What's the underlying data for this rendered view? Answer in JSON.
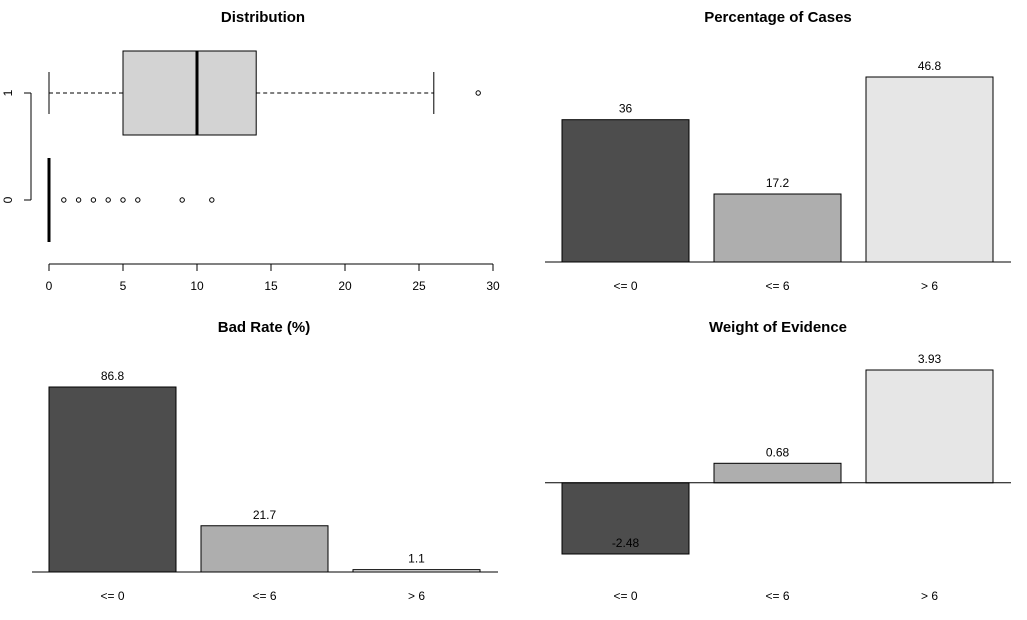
{
  "chart_data": [
    {
      "type": "boxplot",
      "title": "Distribution",
      "orientation": "horizontal",
      "xlim": [
        0,
        30
      ],
      "x_ticks": [
        "0",
        "5",
        "10",
        "15",
        "20",
        "25",
        "30"
      ],
      "groups": [
        {
          "label": "1",
          "min": 0,
          "q1": 5,
          "median": 10,
          "q3": 14,
          "max": 26,
          "outliers": [
            29
          ]
        },
        {
          "label": "0",
          "min": 0,
          "q1": 0,
          "median": 0,
          "q3": 0,
          "max": 0,
          "outliers": [
            1,
            2,
            3,
            4,
            5,
            6,
            9,
            11
          ]
        }
      ]
    },
    {
      "type": "bar",
      "title": "Percentage of Cases",
      "categories": [
        "<= 0",
        "<= 6",
        "> 6"
      ],
      "values": [
        36,
        17.2,
        46.8
      ],
      "value_labels": [
        "36",
        "17.2",
        "46.8"
      ],
      "colors": [
        "#4d4d4d",
        "#aeaeae",
        "#e6e6e6"
      ]
    },
    {
      "type": "bar",
      "title": "Bad Rate (%)",
      "categories": [
        "<= 0",
        "<= 6",
        "> 6"
      ],
      "values": [
        86.8,
        21.7,
        1.1
      ],
      "value_labels": [
        "86.8",
        "21.7",
        "1.1"
      ],
      "colors": [
        "#4d4d4d",
        "#aeaeae",
        "#e6e6e6"
      ]
    },
    {
      "type": "bar",
      "title": "Weight of Evidence",
      "categories": [
        "<= 0",
        "<= 6",
        "> 6"
      ],
      "values": [
        -2.48,
        0.68,
        3.93
      ],
      "value_labels": [
        "-2.48",
        "0.68",
        "3.93"
      ],
      "colors": [
        "#4d4d4d",
        "#aeaeae",
        "#e6e6e6"
      ]
    }
  ]
}
